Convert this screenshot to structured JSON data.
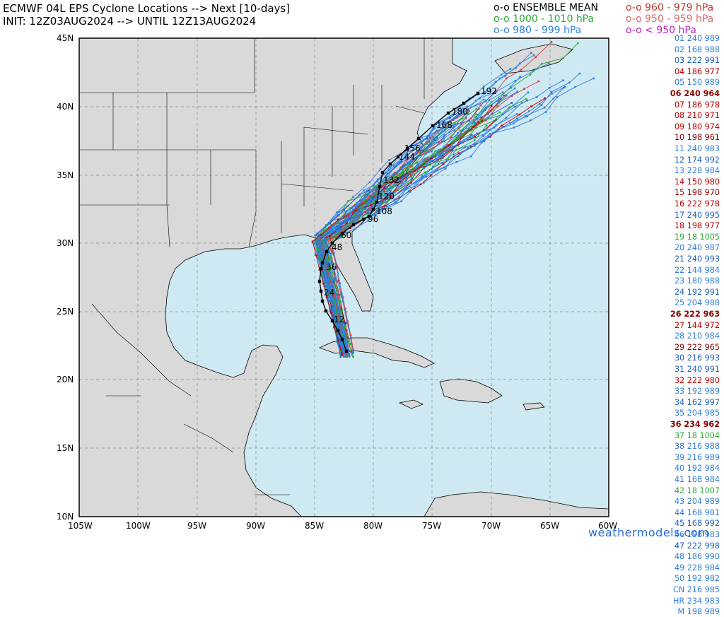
{
  "title": {
    "line1": "ECMWF 04L EPS Cyclone Locations --> Next [10-days]",
    "line2": "INIT: 12Z03AUG2024 --> UNTIL 12Z13AUG2024"
  },
  "legend": {
    "mean": {
      "text": "o-o ENSEMBLE MEAN",
      "color": "#000000"
    },
    "p960": {
      "text": "o-o 960 - 979 hPa",
      "color": "#c0392b"
    },
    "p1000": {
      "text": "o-o 1000 - 1010 hPa",
      "color": "#2eaa3a"
    },
    "p950": {
      "text": "o-o 950 - 959 hPa",
      "color": "#d66a6a"
    },
    "p980": {
      "text": "o-o 980 - 999 hPa",
      "color": "#2f7fe0"
    },
    "plt950": {
      "text": "o-o < 950 hPa",
      "color": "#c020c0"
    }
  },
  "axes": {
    "lat_labels": [
      "45N",
      "40N",
      "35N",
      "30N",
      "25N",
      "20N",
      "15N",
      "10N"
    ],
    "lon_labels": [
      "105W",
      "100W",
      "95W",
      "90W",
      "85W",
      "80W",
      "75W",
      "70W",
      "65W",
      "60W"
    ]
  },
  "mean_track_labels": [
    "12",
    "24",
    "36",
    "48",
    "60",
    "96",
    "108",
    "120",
    "132",
    "144",
    "156",
    "168",
    "180",
    "192"
  ],
  "members": [
    {
      "id": "01",
      "hr": "240",
      "p": "989",
      "c": "#2f7fe0",
      "b": false
    },
    {
      "id": "02",
      "hr": "168",
      "p": "988",
      "c": "#2f7fe0",
      "b": false
    },
    {
      "id": "03",
      "hr": "222",
      "p": "991",
      "c": "#1f5fbf",
      "b": false
    },
    {
      "id": "04",
      "hr": "186",
      "p": "977",
      "c": "#c00000",
      "b": false
    },
    {
      "id": "05",
      "hr": "150",
      "p": "989",
      "c": "#2f7fe0",
      "b": false
    },
    {
      "id": "06",
      "hr": "240",
      "p": "964",
      "c": "#8b0000",
      "b": true
    },
    {
      "id": "07",
      "hr": "186",
      "p": "978",
      "c": "#c00000",
      "b": false
    },
    {
      "id": "08",
      "hr": "210",
      "p": "971",
      "c": "#c00000",
      "b": false
    },
    {
      "id": "09",
      "hr": "180",
      "p": "974",
      "c": "#c00000",
      "b": false
    },
    {
      "id": "10",
      "hr": "198",
      "p": "961",
      "c": "#8b0000",
      "b": false
    },
    {
      "id": "11",
      "hr": "240",
      "p": "983",
      "c": "#2f7fe0",
      "b": false
    },
    {
      "id": "12",
      "hr": "174",
      "p": "992",
      "c": "#1f5fbf",
      "b": false
    },
    {
      "id": "13",
      "hr": "228",
      "p": "984",
      "c": "#2f7fe0",
      "b": false
    },
    {
      "id": "14",
      "hr": "150",
      "p": "980",
      "c": "#c00000",
      "b": false
    },
    {
      "id": "15",
      "hr": "198",
      "p": "970",
      "c": "#8b0000",
      "b": false
    },
    {
      "id": "16",
      "hr": "222",
      "p": "978",
      "c": "#c00000",
      "b": false
    },
    {
      "id": "17",
      "hr": "240",
      "p": "995",
      "c": "#1f5fbf",
      "b": false
    },
    {
      "id": "18",
      "hr": "198",
      "p": "977",
      "c": "#c00000",
      "b": false
    },
    {
      "id": "19",
      "hr": "18",
      "p": "1005",
      "c": "#2eaa3a",
      "b": false
    },
    {
      "id": "20",
      "hr": "240",
      "p": "987",
      "c": "#2f7fe0",
      "b": false
    },
    {
      "id": "21",
      "hr": "240",
      "p": "993",
      "c": "#1f5fbf",
      "b": false
    },
    {
      "id": "22",
      "hr": "144",
      "p": "984",
      "c": "#2f7fe0",
      "b": false
    },
    {
      "id": "23",
      "hr": "180",
      "p": "988",
      "c": "#2f7fe0",
      "b": false
    },
    {
      "id": "24",
      "hr": "192",
      "p": "991",
      "c": "#1f5fbf",
      "b": false
    },
    {
      "id": "25",
      "hr": "204",
      "p": "988",
      "c": "#2f7fe0",
      "b": false
    },
    {
      "id": "26",
      "hr": "222",
      "p": "963",
      "c": "#8b0000",
      "b": true
    },
    {
      "id": "27",
      "hr": "144",
      "p": "972",
      "c": "#c00000",
      "b": false
    },
    {
      "id": "28",
      "hr": "210",
      "p": "984",
      "c": "#2f7fe0",
      "b": false
    },
    {
      "id": "29",
      "hr": "222",
      "p": "965",
      "c": "#8b0000",
      "b": false
    },
    {
      "id": "30",
      "hr": "216",
      "p": "993",
      "c": "#1f5fbf",
      "b": false
    },
    {
      "id": "31",
      "hr": "240",
      "p": "991",
      "c": "#1f5fbf",
      "b": false
    },
    {
      "id": "32",
      "hr": "222",
      "p": "980",
      "c": "#c00000",
      "b": false
    },
    {
      "id": "33",
      "hr": "192",
      "p": "989",
      "c": "#2f7fe0",
      "b": false
    },
    {
      "id": "34",
      "hr": "162",
      "p": "997",
      "c": "#1f5fbf",
      "b": false
    },
    {
      "id": "35",
      "hr": "204",
      "p": "985",
      "c": "#2f7fe0",
      "b": false
    },
    {
      "id": "36",
      "hr": "234",
      "p": "962",
      "c": "#8b0000",
      "b": true
    },
    {
      "id": "37",
      "hr": "18",
      "p": "1004",
      "c": "#2eaa3a",
      "b": false
    },
    {
      "id": "38",
      "hr": "216",
      "p": "988",
      "c": "#2f7fe0",
      "b": false
    },
    {
      "id": "39",
      "hr": "216",
      "p": "989",
      "c": "#2f7fe0",
      "b": false
    },
    {
      "id": "40",
      "hr": "192",
      "p": "984",
      "c": "#2f7fe0",
      "b": false
    },
    {
      "id": "41",
      "hr": "168",
      "p": "984",
      "c": "#2f7fe0",
      "b": false
    },
    {
      "id": "42",
      "hr": "18",
      "p": "1007",
      "c": "#2eaa3a",
      "b": false
    },
    {
      "id": "43",
      "hr": "204",
      "p": "989",
      "c": "#2f7fe0",
      "b": false
    },
    {
      "id": "44",
      "hr": "168",
      "p": "981",
      "c": "#2f7fe0",
      "b": false
    },
    {
      "id": "45",
      "hr": "168",
      "p": "992",
      "c": "#1f5fbf",
      "b": false
    },
    {
      "id": "46",
      "hr": "198",
      "p": "983",
      "c": "#2f7fe0",
      "b": false
    },
    {
      "id": "47",
      "hr": "222",
      "p": "998",
      "c": "#1f5fbf",
      "b": false
    },
    {
      "id": "48",
      "hr": "186",
      "p": "990",
      "c": "#2f7fe0",
      "b": false
    },
    {
      "id": "49",
      "hr": "228",
      "p": "984",
      "c": "#2f7fe0",
      "b": false
    },
    {
      "id": "50",
      "hr": "192",
      "p": "982",
      "c": "#2f7fe0",
      "b": false
    },
    {
      "id": "CN",
      "hr": "216",
      "p": "985",
      "c": "#2f7fe0",
      "b": false
    },
    {
      "id": "HR",
      "hr": "234",
      "p": "983",
      "c": "#2f7fe0",
      "b": false
    },
    {
      "id": "M",
      "hr": "198",
      "p": "989",
      "c": "#2f7fe0",
      "b": false
    }
  ],
  "credit": "weathermodels.com"
}
